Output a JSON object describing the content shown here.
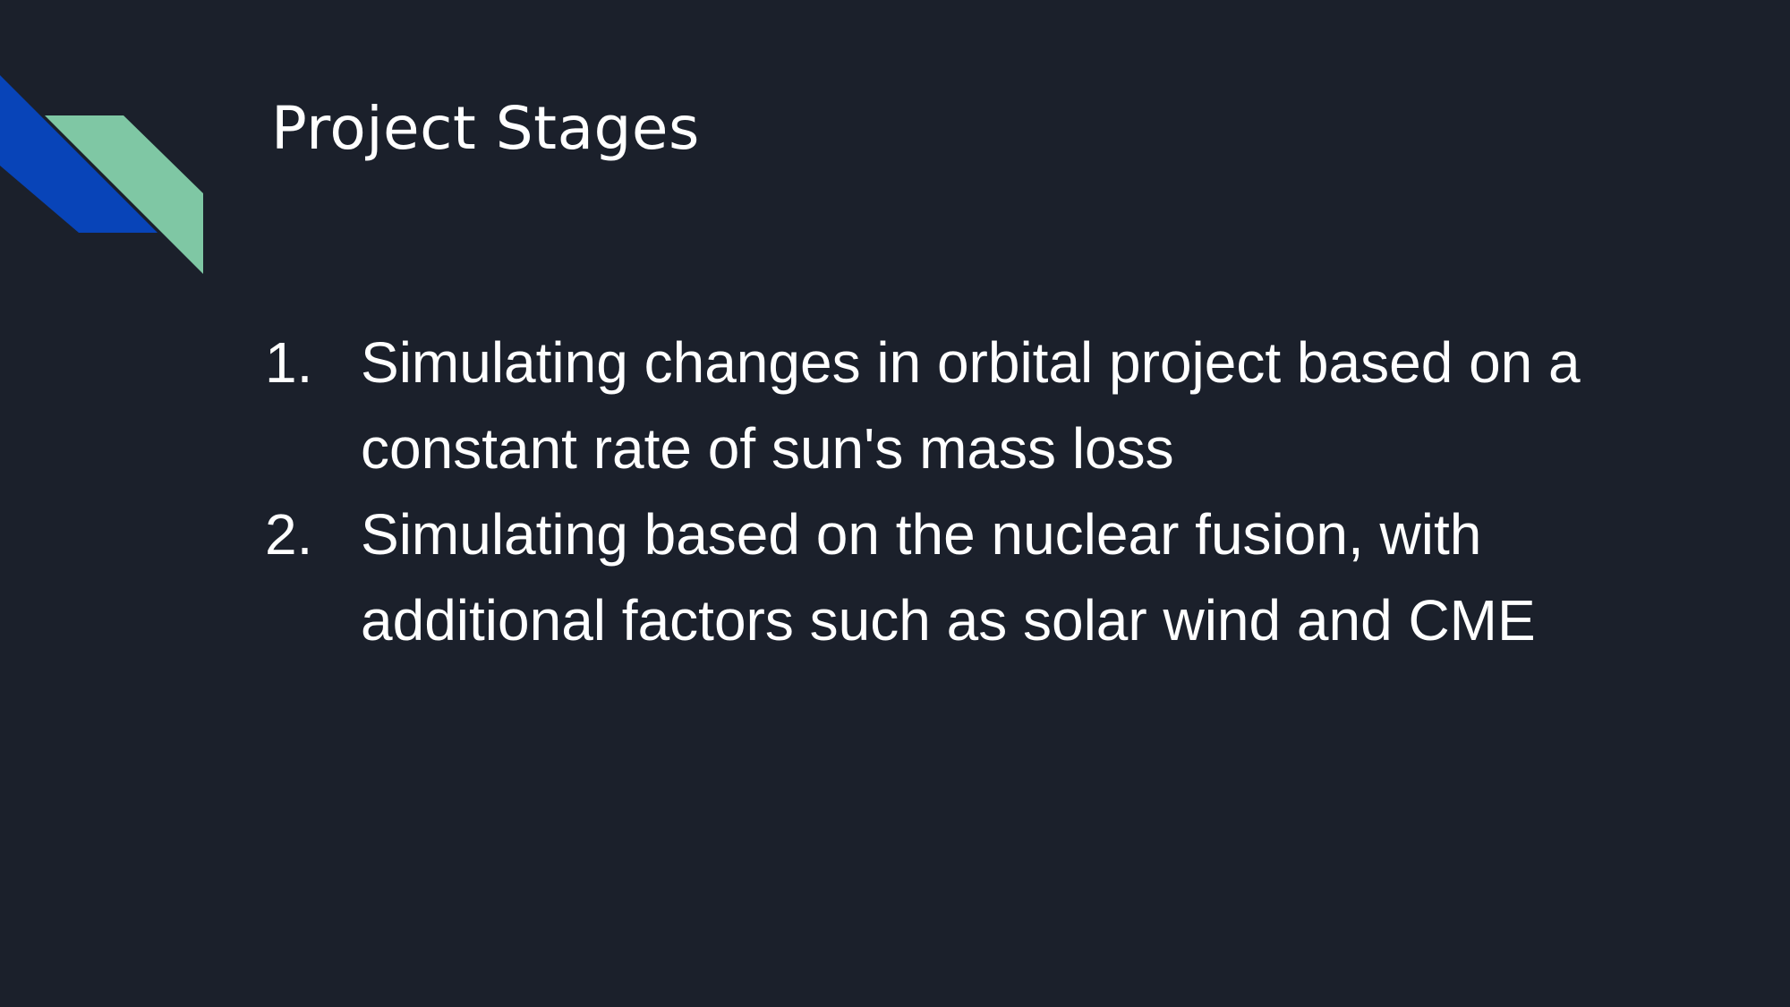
{
  "slide": {
    "title": "Project Stages",
    "stages": [
      {
        "number": "1.",
        "text": "Simulating changes in orbital project based on a constant rate of sun's mass loss"
      },
      {
        "number": "2.",
        "text": "Simulating based on the nuclear fusion, with additional factors such as solar wind and CME"
      }
    ]
  },
  "colors": {
    "background": "#1b202b",
    "text": "#ffffff",
    "accent_blue": "#0844b8",
    "accent_green": "#7fc7a4"
  }
}
